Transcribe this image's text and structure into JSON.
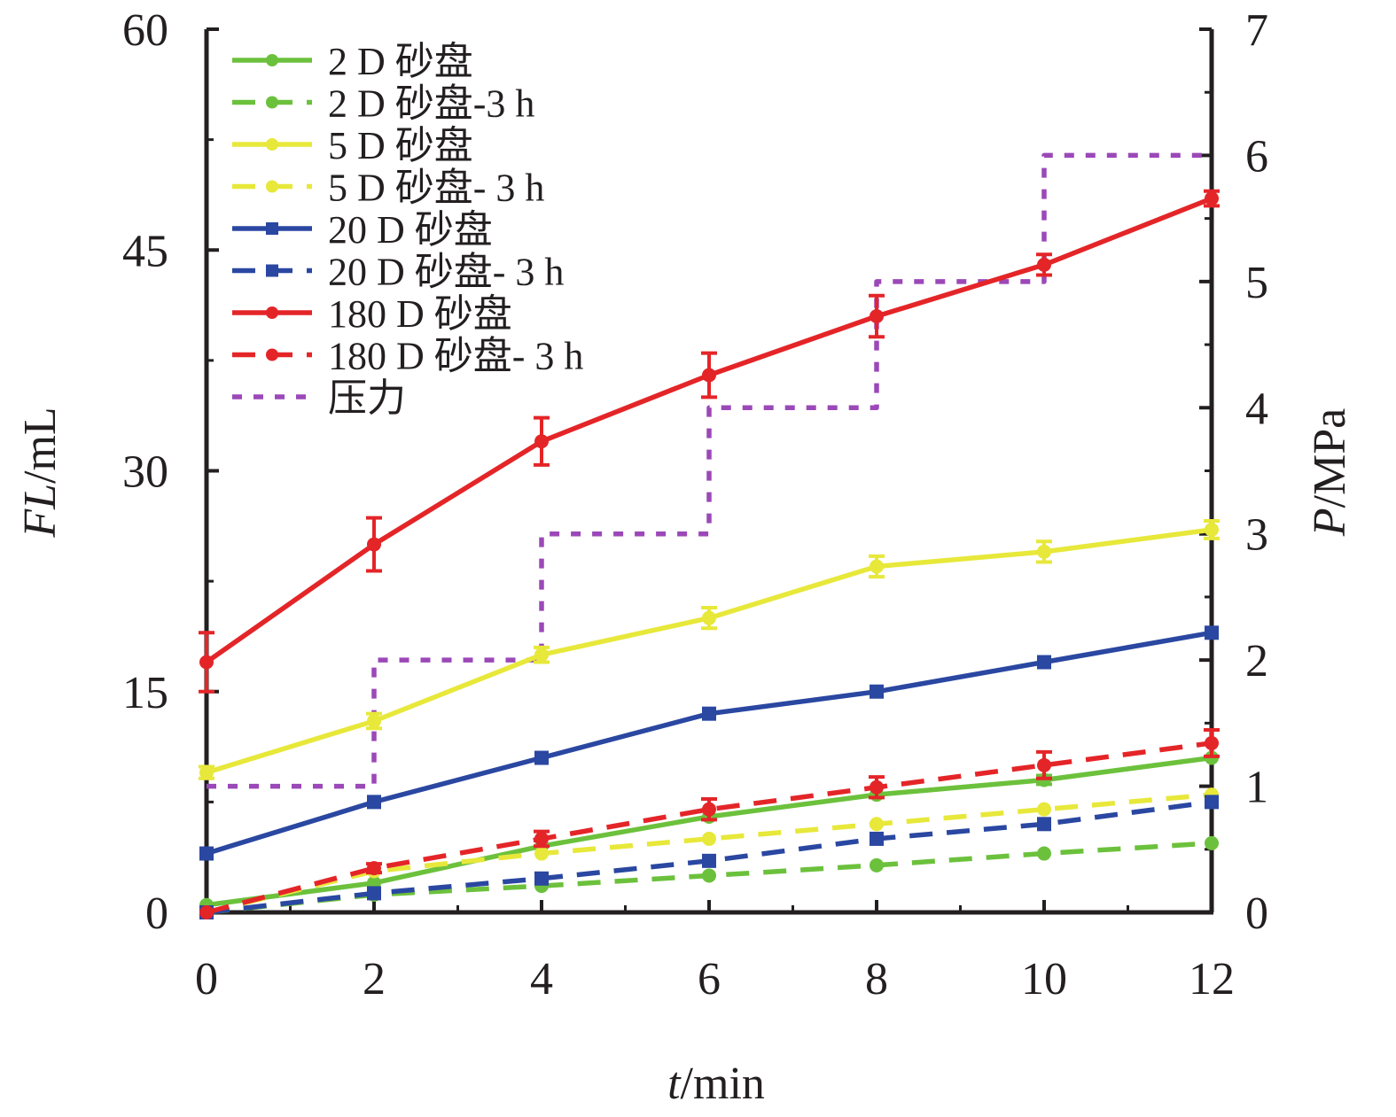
{
  "chart_data": {
    "type": "line",
    "x": [
      0,
      2,
      4,
      6,
      8,
      10,
      12
    ],
    "xlabel": {
      "italic": "t",
      "rest": "/min"
    },
    "ylabel_left": {
      "italic": "FL",
      "rest": "/mL"
    },
    "ylabel_right": {
      "italic": "P",
      "rest": "/MPa"
    },
    "xlim": [
      0,
      12
    ],
    "ylim_left": [
      0,
      60
    ],
    "ylim_right": [
      0,
      7
    ],
    "xticks": [
      0,
      2,
      4,
      6,
      8,
      10,
      12
    ],
    "yticks_left": [
      0,
      15,
      30,
      45,
      60
    ],
    "yticks_right": [
      0,
      1,
      2,
      3,
      4,
      5,
      6,
      7
    ],
    "grid": false,
    "legend_position": "top-left",
    "series": [
      {
        "name": "2 D 砂盘",
        "color": "#6cc13c",
        "dash": "solid",
        "marker": "circle",
        "axis": "left",
        "values": [
          0.5,
          2.0,
          4.5,
          6.5,
          8.0,
          9.0,
          10.5
        ],
        "errors": [
          0,
          0,
          0,
          0,
          0,
          0.3,
          0
        ]
      },
      {
        "name": "2 D 砂盘-3 h",
        "color": "#6cc13c",
        "dash": "dashed",
        "marker": "circle",
        "axis": "left",
        "values": [
          0.0,
          1.2,
          1.8,
          2.5,
          3.2,
          4.0,
          4.7
        ],
        "errors": [
          0,
          0,
          0,
          0,
          0,
          0,
          0
        ]
      },
      {
        "name": "5 D 砂盘",
        "color": "#e7e83a",
        "dash": "solid",
        "marker": "circle",
        "axis": "left",
        "values": [
          9.5,
          13.0,
          17.5,
          20.0,
          23.5,
          24.5,
          26.0
        ],
        "errors": [
          0.4,
          0.5,
          0.5,
          0.7,
          0.7,
          0.7,
          0.6
        ]
      },
      {
        "name": "5 D 砂盘- 3 h",
        "color": "#e7e83a",
        "dash": "dashed",
        "marker": "circle",
        "axis": "left",
        "values": [
          0.0,
          2.8,
          4.0,
          5.0,
          6.0,
          7.0,
          8.0
        ],
        "errors": [
          0,
          0,
          0,
          0,
          0,
          0,
          0
        ]
      },
      {
        "name": "20 D 砂盘",
        "color": "#2a47a1",
        "dash": "solid",
        "marker": "square",
        "axis": "left",
        "values": [
          4.0,
          7.5,
          10.5,
          13.5,
          15.0,
          17.0,
          19.0
        ],
        "errors": [
          0,
          0,
          0,
          0,
          0,
          0,
          0
        ]
      },
      {
        "name": "20 D 砂盘- 3 h",
        "color": "#2a47a1",
        "dash": "dashed",
        "marker": "square",
        "axis": "left",
        "values": [
          0.0,
          1.3,
          2.3,
          3.5,
          5.0,
          6.0,
          7.5
        ],
        "errors": [
          0,
          0,
          0,
          0,
          0,
          0,
          0
        ]
      },
      {
        "name": "180 D 砂盘",
        "color": "#e42528",
        "dash": "solid",
        "marker": "circle",
        "axis": "left",
        "values": [
          17.0,
          25.0,
          32.0,
          36.5,
          40.5,
          44.0,
          48.5
        ],
        "errors": [
          2.0,
          1.8,
          1.6,
          1.5,
          1.4,
          0.7,
          0.5
        ]
      },
      {
        "name": "180 D 砂盘- 3 h",
        "color": "#e42528",
        "dash": "dashed",
        "marker": "circle",
        "axis": "left",
        "values": [
          0.0,
          3.0,
          5.0,
          7.0,
          8.5,
          10.0,
          11.5
        ],
        "errors": [
          0,
          0.3,
          0.5,
          0.7,
          0.7,
          0.9,
          0.9
        ]
      },
      {
        "name": "压力",
        "color": "#9b48b8",
        "dash": "dotted",
        "marker": "none",
        "axis": "right",
        "style": "step",
        "values": [
          1,
          2,
          3,
          4,
          5,
          6,
          6
        ],
        "errors": [
          0,
          0,
          0,
          0,
          0,
          0,
          0
        ]
      }
    ]
  }
}
